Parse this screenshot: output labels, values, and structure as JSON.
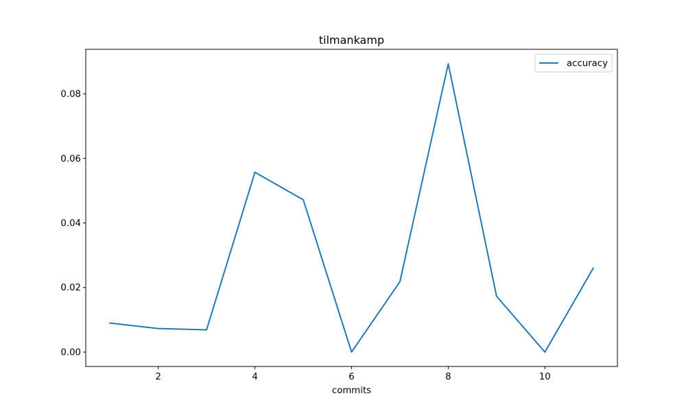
{
  "chart_data": {
    "type": "line",
    "title": "tilmankamp",
    "xlabel": "commits",
    "ylabel": "",
    "x": [
      1,
      2,
      3,
      4,
      5,
      6,
      7,
      8,
      9,
      10,
      11
    ],
    "series": [
      {
        "name": "accuracy",
        "color": "#1f77b4",
        "values": [
          0.009,
          0.0073,
          0.0069,
          0.0557,
          0.0472,
          0.0,
          0.0218,
          0.0893,
          0.0173,
          0.0,
          0.026
        ]
      }
    ],
    "xlim": [
      0.5,
      11.5
    ],
    "ylim": [
      -0.00446,
      0.0938
    ],
    "xticks": [
      2,
      4,
      6,
      8,
      10
    ],
    "xtick_labels": [
      "2",
      "4",
      "6",
      "8",
      "10"
    ],
    "yticks": [
      0.0,
      0.02,
      0.04,
      0.06,
      0.08
    ],
    "ytick_labels": [
      "0.00",
      "0.02",
      "0.04",
      "0.06",
      "0.08"
    ],
    "grid": false,
    "legend_position": "top-right"
  }
}
